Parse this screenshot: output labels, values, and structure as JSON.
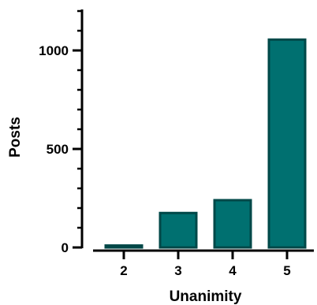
{
  "chart_data": {
    "type": "bar",
    "title": "",
    "xlabel": "Unanimity",
    "ylabel": "Posts",
    "categories": [
      "2",
      "3",
      "4",
      "5"
    ],
    "values": [
      10,
      175,
      240,
      1055
    ],
    "ylim": [
      0,
      1200
    ],
    "yticks_major": [
      0,
      500,
      1000
    ],
    "yticks_minor_step": 100,
    "grid": false,
    "legend": "none",
    "colors": {
      "bar_fill": "#007070",
      "bar_stroke": "#004848",
      "axis": "#000000"
    }
  }
}
